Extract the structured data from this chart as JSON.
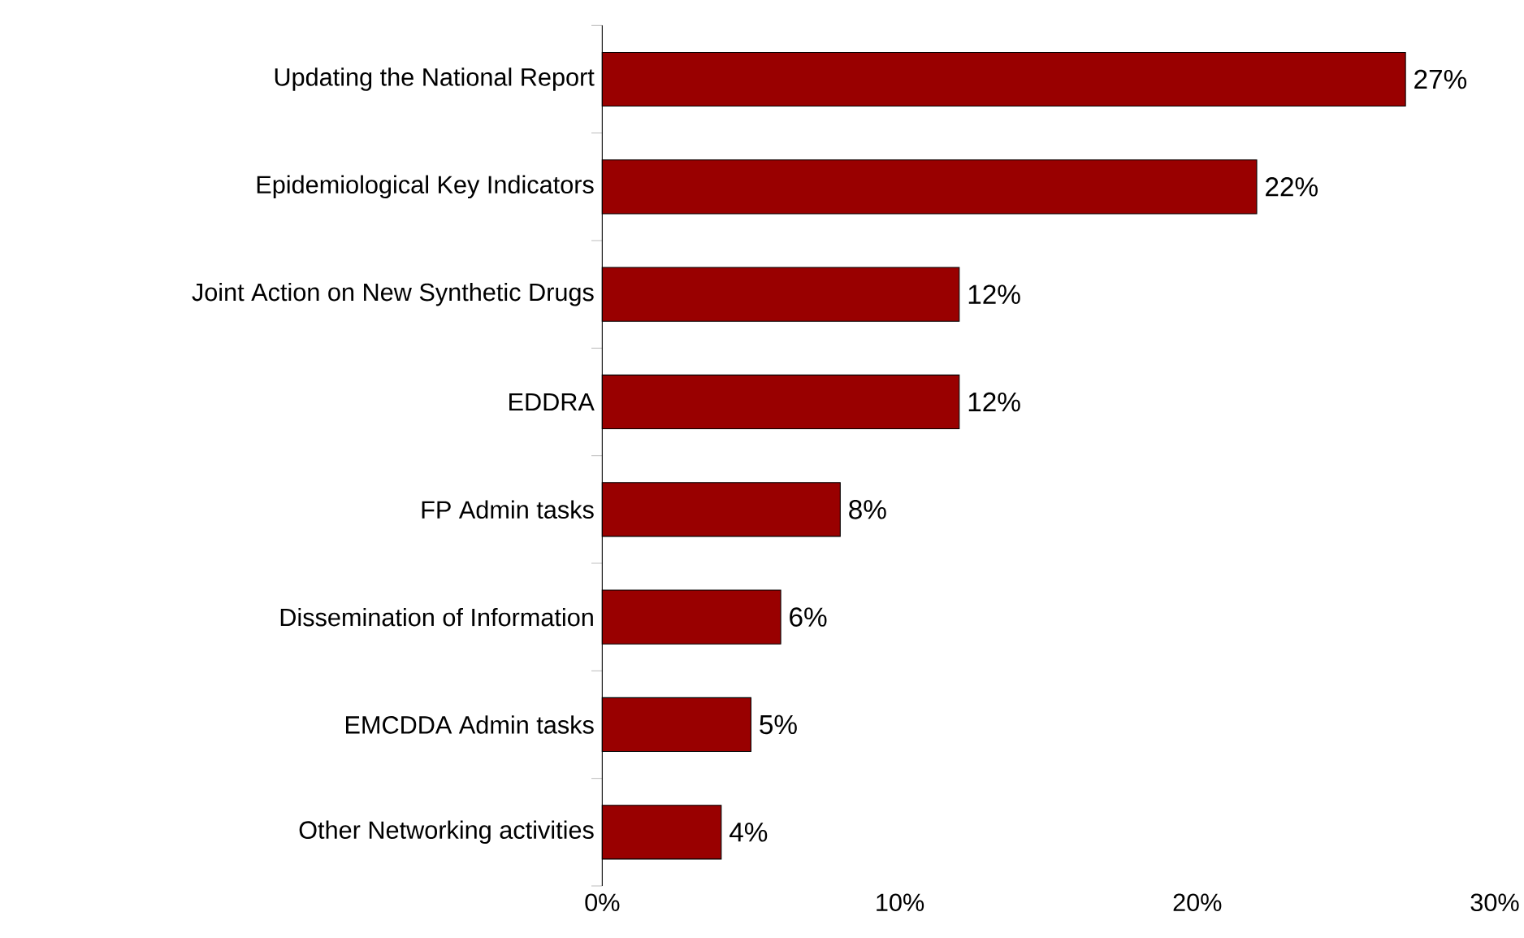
{
  "chart_data": {
    "type": "bar",
    "orientation": "horizontal",
    "categories": [
      "Updating the National Report",
      "Epidemiological Key Indicators",
      "Joint Action on New Synthetic Drugs",
      "EDDRA",
      "FP Admin tasks",
      "Dissemination of Information",
      "EMCDDA Admin tasks",
      "Other Networking activities"
    ],
    "values": [
      27,
      22,
      12,
      12,
      8,
      6,
      5,
      4
    ],
    "value_labels": [
      "27%",
      "22%",
      "12%",
      "12%",
      "8%",
      "6%",
      "5%",
      "4%"
    ],
    "color": "#990000",
    "xlim": [
      0,
      30
    ],
    "xticks": [
      {
        "value": 0,
        "label": "0%"
      },
      {
        "value": 10,
        "label": "10%"
      },
      {
        "value": 20,
        "label": "20%"
      },
      {
        "value": 30,
        "label": "30%"
      }
    ]
  }
}
